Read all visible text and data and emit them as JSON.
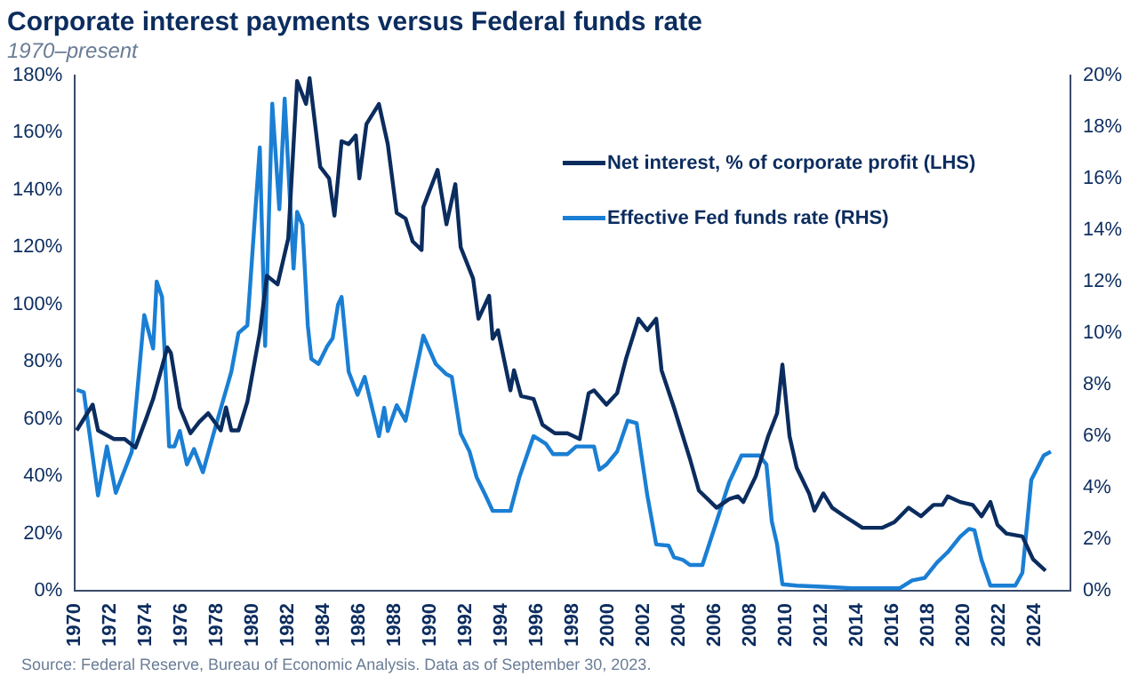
{
  "chart_data": {
    "type": "line",
    "title": "Corporate interest payments versus Federal funds rate",
    "subtitle": "1970–present",
    "annotations": [
      "Source: Federal Reserve, Bureau of Economic Analysis. Data as of September 30, 2023."
    ],
    "xlim": [
      1970,
      2026
    ],
    "xticks": [
      1970,
      1972,
      1974,
      1976,
      1978,
      1980,
      1982,
      1984,
      1986,
      1988,
      1990,
      1992,
      1994,
      1996,
      1998,
      2000,
      2002,
      2004,
      2006,
      2008,
      2010,
      2012,
      2014,
      2016,
      2018,
      2020,
      2022,
      2024
    ],
    "ylim": [
      0,
      180
    ],
    "yticks": [
      {
        "value": 0,
        "label": "0%"
      },
      {
        "value": 20,
        "label": "20%"
      },
      {
        "value": 40,
        "label": "40%"
      },
      {
        "value": 60,
        "label": "60%"
      },
      {
        "value": 80,
        "label": "80%"
      },
      {
        "value": 100,
        "label": "100%"
      },
      {
        "value": 120,
        "label": "120%"
      },
      {
        "value": 140,
        "label": "140%"
      },
      {
        "value": 160,
        "label": "160%"
      },
      {
        "value": 180,
        "label": "180%"
      }
    ],
    "y2lim": [
      0,
      20
    ],
    "y2ticks": [
      {
        "value": 0,
        "label": "0%"
      },
      {
        "value": 2,
        "label": "2%"
      },
      {
        "value": 4,
        "label": "4%"
      },
      {
        "value": 6,
        "label": "6%"
      },
      {
        "value": 8,
        "label": "8%"
      },
      {
        "value": 10,
        "label": "10%"
      },
      {
        "value": 12,
        "label": "12%"
      },
      {
        "value": 14,
        "label": "14%"
      },
      {
        "value": 16,
        "label": "16%"
      },
      {
        "value": 18,
        "label": "18%"
      },
      {
        "value": 20,
        "label": "20%"
      }
    ],
    "grid": false,
    "legend": "top right",
    "marker": "none",
    "line_style": "solid",
    "series": [
      {
        "name": "Net interest, % of corporate profit (LHS)",
        "color": "#0b2c5e",
        "x": [
          1970.1,
          1971.0,
          1971.3,
          1972.2,
          1972.8,
          1973.4,
          1974.0,
          1974.4,
          1975.2,
          1975.4,
          1975.9,
          1976.5,
          1977.0,
          1977.5,
          1978.2,
          1978.5,
          1978.8,
          1979.2,
          1979.7,
          1980.4,
          1980.8,
          1981.4,
          1982.0,
          1982.5,
          1983.0,
          1983.2,
          1983.8,
          1984.3,
          1984.6,
          1985.0,
          1985.4,
          1985.8,
          1986.0,
          1986.4,
          1987.1,
          1987.6,
          1988.1,
          1988.6,
          1989.0,
          1989.5,
          1989.6,
          1990.4,
          1990.9,
          1991.4,
          1991.7,
          1992.4,
          1992.7,
          1993.3,
          1993.5,
          1993.8,
          1994.5,
          1994.7,
          1995.1,
          1995.8,
          1996.3,
          1997.0,
          1997.7,
          1998.4,
          1998.9,
          1999.2,
          1999.9,
          2000.5,
          2001.0,
          2001.7,
          2002.2,
          2002.7,
          2003.0,
          2003.7,
          2004.6,
          2005.1,
          2005.6,
          2006.1,
          2006.8,
          2007.3,
          2007.6,
          2008.3,
          2009.0,
          2009.5,
          2009.8,
          2010.2,
          2010.6,
          2011.3,
          2011.6,
          2012.1,
          2012.6,
          2013.3,
          2013.8,
          2014.3,
          2015.4,
          2016.1,
          2016.9,
          2017.6,
          2018.3,
          2018.8,
          2019.1,
          2019.8,
          2020.5,
          2021.0,
          2021.5,
          2021.9,
          2022.4,
          2023.3,
          2023.9,
          2024.6
        ],
        "values": [
          56,
          65,
          56,
          53,
          53,
          50,
          60,
          67,
          85,
          83,
          64,
          55,
          59,
          62,
          56,
          64,
          56,
          56,
          66,
          90,
          110,
          107,
          123,
          178,
          170,
          179,
          148,
          144,
          131,
          157,
          156,
          159,
          144,
          163,
          170,
          156,
          132,
          130,
          122,
          119,
          134,
          147,
          128,
          142,
          120,
          109,
          95,
          103,
          88,
          91,
          70,
          77,
          68,
          67,
          58,
          55,
          55,
          53,
          69,
          70,
          65,
          69,
          81,
          95,
          91,
          95,
          77,
          64,
          46,
          35,
          32,
          29,
          32,
          33,
          31,
          40,
          54,
          62,
          79,
          54,
          43,
          34,
          28,
          34,
          29,
          26,
          24,
          22,
          22,
          24,
          29,
          26,
          30,
          30,
          33,
          31,
          30,
          26,
          31,
          23,
          20,
          19,
          11,
          7
        ]
      },
      {
        "name": "Effective Fed funds rate (RHS)",
        "color": "#1a7fd4",
        "axis": "y2",
        "x": [
          1970.1,
          1970.5,
          1971.3,
          1971.8,
          1972.3,
          1973.2,
          1973.9,
          1974.4,
          1974.6,
          1974.9,
          1975.3,
          1975.6,
          1975.9,
          1976.3,
          1976.7,
          1977.2,
          1977.8,
          1978.8,
          1979.2,
          1979.7,
          1980.4,
          1980.7,
          1981.1,
          1981.5,
          1981.8,
          1982.3,
          1982.5,
          1982.8,
          1983.1,
          1983.3,
          1983.7,
          1984.2,
          1984.5,
          1984.8,
          1985.0,
          1985.4,
          1985.9,
          1986.3,
          1987.1,
          1987.4,
          1987.6,
          1988.1,
          1988.6,
          1989.6,
          1990.3,
          1990.9,
          1991.2,
          1991.7,
          1992.2,
          1992.6,
          1993.1,
          1993.5,
          1994.5,
          1995.0,
          1995.8,
          1996.5,
          1996.9,
          1997.7,
          1998.2,
          1999.2,
          1999.5,
          1999.9,
          2000.5,
          2001.1,
          2001.6,
          2002.2,
          2002.7,
          2003.4,
          2003.7,
          2004.2,
          2004.6,
          2005.3,
          2006.1,
          2006.8,
          2007.5,
          2008.5,
          2008.9,
          2009.2,
          2009.5,
          2009.8,
          2010.6,
          2012.3,
          2013.7,
          2016.4,
          2017.1,
          2017.8,
          2018.5,
          2019.1,
          2019.8,
          2020.3,
          2020.6,
          2021.0,
          2021.5,
          2022.9,
          2023.3,
          2023.8,
          2024.5,
          2024.9
        ],
        "values": [
          7.8,
          7.7,
          3.7,
          5.6,
          3.8,
          5.4,
          10.7,
          9.4,
          12.0,
          11.4,
          5.6,
          5.6,
          6.2,
          4.9,
          5.5,
          4.6,
          6.1,
          8.5,
          10.0,
          10.3,
          17.2,
          9.5,
          18.9,
          14.8,
          19.1,
          12.5,
          14.7,
          14.2,
          10.3,
          9.0,
          8.8,
          9.5,
          9.8,
          11.1,
          11.4,
          8.5,
          7.6,
          8.3,
          6.0,
          7.1,
          6.2,
          7.2,
          6.6,
          9.9,
          8.8,
          8.4,
          8.3,
          6.1,
          5.4,
          4.4,
          3.7,
          3.1,
          3.1,
          4.4,
          6.0,
          5.7,
          5.3,
          5.3,
          5.6,
          5.6,
          4.7,
          4.9,
          5.4,
          6.6,
          6.5,
          3.7,
          1.8,
          1.75,
          1.3,
          1.2,
          1.0,
          1.0,
          2.7,
          4.2,
          5.25,
          5.25,
          4.9,
          2.7,
          1.8,
          0.25,
          0.2,
          0.15,
          0.1,
          0.1,
          0.4,
          0.5,
          1.1,
          1.5,
          2.1,
          2.4,
          2.35,
          1.2,
          0.2,
          0.2,
          0.7,
          4.3,
          5.25,
          5.4
        ]
      }
    ]
  }
}
